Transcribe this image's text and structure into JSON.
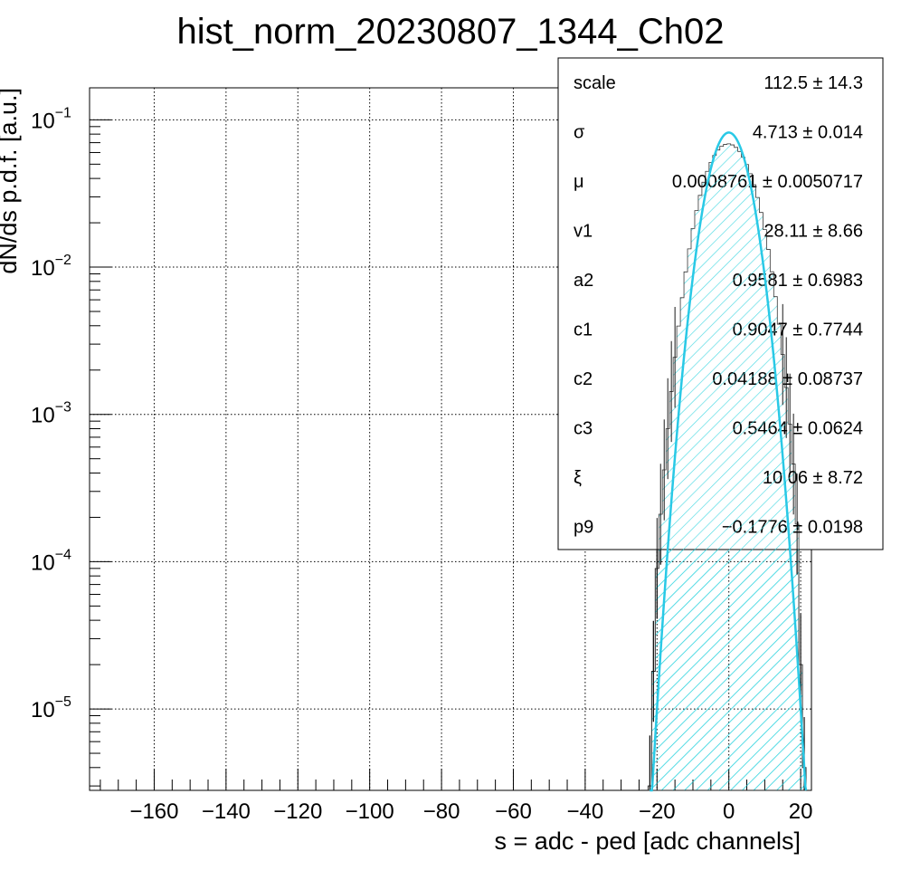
{
  "chart_data": {
    "type": "histogram",
    "title": "hist_norm_20230807_1344_Ch02",
    "xlabel": "s = adc - ped [adc channels]",
    "ylabel": "dN/ds p.d.f. [a.u.]",
    "xlim": [
      -178,
      23
    ],
    "ylim": [
      2.8e-06,
      0.165
    ],
    "yscale": "log",
    "grid": true,
    "x_ticks": [
      -160,
      -140,
      -120,
      -100,
      -80,
      -60,
      -40,
      -20,
      0,
      20
    ],
    "x_tick_labels": [
      "−160",
      "−140",
      "−120",
      "−100",
      "−80",
      "−60",
      "−40",
      "−20",
      "0",
      "20"
    ],
    "y_ticks": [
      {
        "value": 0.1,
        "base": "10",
        "exp": "−1"
      },
      {
        "value": 0.01,
        "base": "10",
        "exp": "−2"
      },
      {
        "value": 0.001,
        "base": "10",
        "exp": "−3"
      },
      {
        "value": 0.0001,
        "base": "10",
        "exp": "−4"
      },
      {
        "value": 1e-05,
        "base": "10",
        "exp": "−5"
      }
    ],
    "histogram": {
      "x": [
        -22,
        -21,
        -20,
        -19,
        -18,
        -17,
        -16,
        -15,
        -14,
        -13,
        -12,
        -11,
        -10,
        -9,
        -8,
        -7,
        -6,
        -5,
        -4,
        -3,
        -2,
        -1,
        0,
        1,
        2,
        3,
        4,
        5,
        6,
        7,
        8,
        9,
        10,
        11,
        12,
        13,
        14,
        15,
        16,
        17,
        18,
        19,
        20,
        21
      ],
      "y": [
        3e-06,
        1.8e-05,
        9e-05,
        0.00021,
        0.00042,
        0.0008,
        0.00143,
        0.00244,
        0.00398,
        0.0062,
        0.00928,
        0.0133,
        0.0183,
        0.0242,
        0.0307,
        0.0377,
        0.0447,
        0.0514,
        0.0574,
        0.0624,
        0.0661,
        0.0682,
        0.0687,
        0.0676,
        0.065,
        0.061,
        0.0558,
        0.0497,
        0.0431,
        0.0363,
        0.0297,
        0.0235,
        0.018,
        0.0132,
        0.0093,
        0.0063,
        0.0041,
        0.00255,
        0.00152,
        0.00086,
        0.00046,
        0.00018,
        2e-05,
        4e-06
      ],
      "bin_width": 1,
      "fill_pattern": "diagonal-hatch",
      "color": "#3ad6e0"
    },
    "fit_curve": {
      "model": "gaussian-like",
      "mu": 0.0008761,
      "sigma": 4.713,
      "peak": 0.082,
      "x_range": [
        -22,
        21.5
      ],
      "color": "#29c9e6"
    },
    "stats_box": [
      {
        "key": "scale",
        "value": "112.5",
        "error": "14.3"
      },
      {
        "key": "σ",
        "value": "4.713",
        "error": "0.014"
      },
      {
        "key": "μ",
        "value": "0.0008761",
        "error": "0.0050717"
      },
      {
        "key": "v1",
        "value": "28.11",
        "error": "8.66"
      },
      {
        "key": "a2",
        "value": "0.9581",
        "error": "0.6983"
      },
      {
        "key": "c1",
        "value": "0.9047",
        "error": "0.7744"
      },
      {
        "key": "c2",
        "value": "0.04188",
        "error": "0.08737"
      },
      {
        "key": "c3",
        "value": "0.5464",
        "error": "0.0624"
      },
      {
        "key": "ξ",
        "value": "10.06",
        "error": "8.72"
      },
      {
        "key": "p9",
        "value": "−0.1776",
        "error": "0.0198"
      }
    ],
    "pm_symbol": "±"
  }
}
